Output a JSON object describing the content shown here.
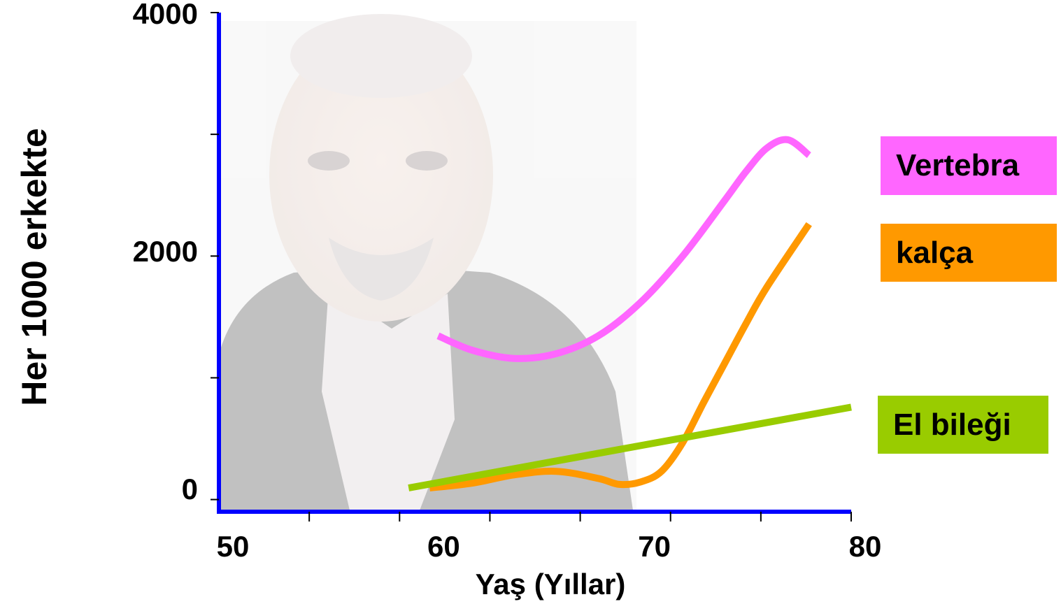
{
  "chart_data": {
    "type": "line",
    "xlabel": "Yaş (Yıllar)",
    "ylabel": "Her 1000 erkekte",
    "xlim": [
      50,
      80
    ],
    "ylim": [
      -200,
      4000
    ],
    "x_ticks": [
      50,
      60,
      70,
      80
    ],
    "y_ticks": [
      0,
      2000,
      4000
    ],
    "grid": false,
    "legend_placement": "right",
    "axis_color": "#0000ff",
    "background_image": "elderly-man-photo",
    "series": [
      {
        "name": "Vertebra",
        "color": "#ff66ff",
        "x": [
          60.4,
          62,
          64,
          66,
          68,
          70,
          72,
          74,
          75,
          76,
          77,
          78
        ],
        "y": [
          1280,
          1160,
          1090,
          1130,
          1280,
          1560,
          1950,
          2420,
          2660,
          2860,
          2930,
          2800
        ]
      },
      {
        "name": "kalça",
        "color": "#ff9900",
        "x": [
          60,
          62,
          64,
          66,
          68,
          69,
          70,
          71,
          72,
          73,
          74,
          75,
          76,
          78
        ],
        "y": [
          0,
          40,
          110,
          140,
          80,
          30,
          50,
          140,
          380,
          720,
          1050,
          1380,
          1690,
          2220
        ]
      },
      {
        "name": "El bileği",
        "color": "#99cc00",
        "x": [
          59,
          80
        ],
        "y": [
          0,
          680
        ]
      }
    ]
  }
}
